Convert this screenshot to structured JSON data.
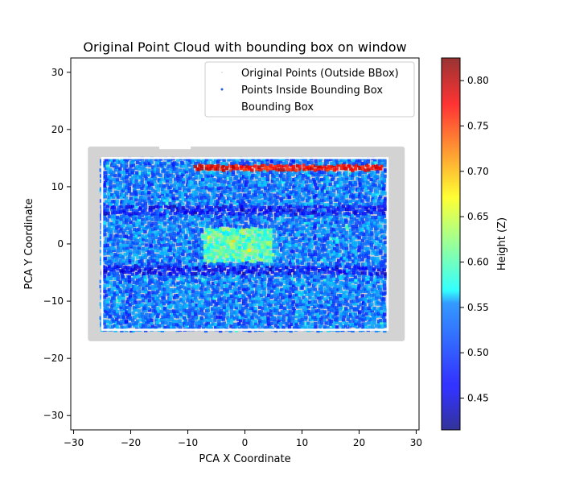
{
  "chart_data": {
    "type": "scatter",
    "title": "Original Point Cloud with bounding box on window",
    "xlabel": "PCA X Coordinate",
    "ylabel": "PCA Y Coordinate",
    "xlim": [
      -30.5,
      30.5
    ],
    "ylim": [
      -32.5,
      32.5
    ],
    "xticks": [
      -30,
      -20,
      -10,
      0,
      10,
      20,
      30
    ],
    "yticks": [
      -30,
      -20,
      -10,
      0,
      10,
      20,
      30
    ],
    "grid": false,
    "legend": {
      "placement": "top-right",
      "entries": [
        "Original Points (Outside BBox)",
        "Points Inside Bounding Box",
        "Bounding Box"
      ]
    },
    "series": [
      {
        "name": "Original Points (Outside BBox)",
        "color": "#d3d3d3",
        "region": {
          "x": [
            -27.5,
            28
          ],
          "y": [
            -17,
            17
          ]
        }
      },
      {
        "name": "Points Inside Bounding Box",
        "colormap": "jet",
        "region": {
          "x": [
            -25,
            25
          ],
          "y": [
            -15,
            15
          ]
        },
        "dark_bands_y": [
          6,
          -4.5
        ],
        "hot_streak": {
          "x": [
            -9,
            24
          ],
          "y": 13.3,
          "z": 0.78
        },
        "cluster": {
          "x": [
            -7,
            5
          ],
          "y": [
            -3,
            3
          ],
          "z": 0.6
        }
      },
      {
        "name": "Bounding Box",
        "color": "#ffffff",
        "corners": [
          [
            -25,
            -15
          ],
          [
            25,
            -15
          ],
          [
            25,
            15
          ],
          [
            -25,
            15
          ]
        ]
      }
    ],
    "colorbar": {
      "label": "Height (Z)",
      "range": [
        0.415,
        0.825
      ],
      "ticks": [
        0.45,
        0.5,
        0.55,
        0.6,
        0.65,
        0.7,
        0.75,
        0.8
      ],
      "colormap": "jet",
      "alpha": 0.8
    }
  }
}
